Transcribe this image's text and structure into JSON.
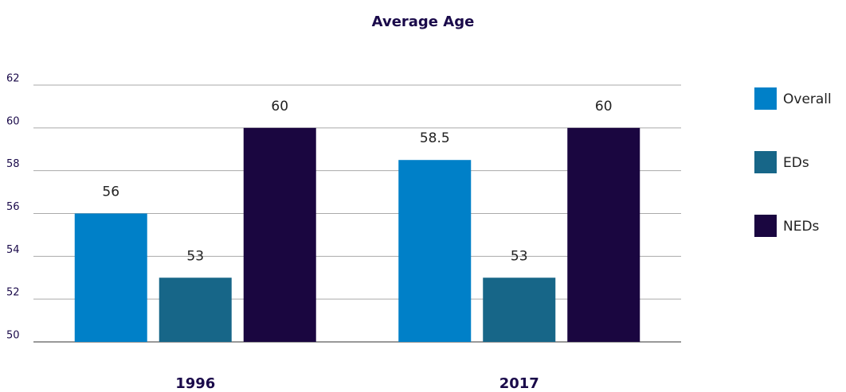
{
  "chart_data": {
    "type": "bar",
    "title": "Average Age",
    "categories": [
      "1996",
      "2017"
    ],
    "series": [
      {
        "name": "Overall",
        "color": "#0080c8",
        "values": [
          56,
          58.5
        ]
      },
      {
        "name": "EDs",
        "color": "#176688",
        "values": [
          53,
          53
        ]
      },
      {
        "name": "NEDs",
        "color": "#1a0640",
        "values": [
          60,
          60
        ]
      }
    ],
    "ylim": [
      50,
      62
    ],
    "yticks": [
      50,
      52,
      54,
      56,
      58,
      60,
      62
    ],
    "grid": true,
    "legend": "right"
  }
}
